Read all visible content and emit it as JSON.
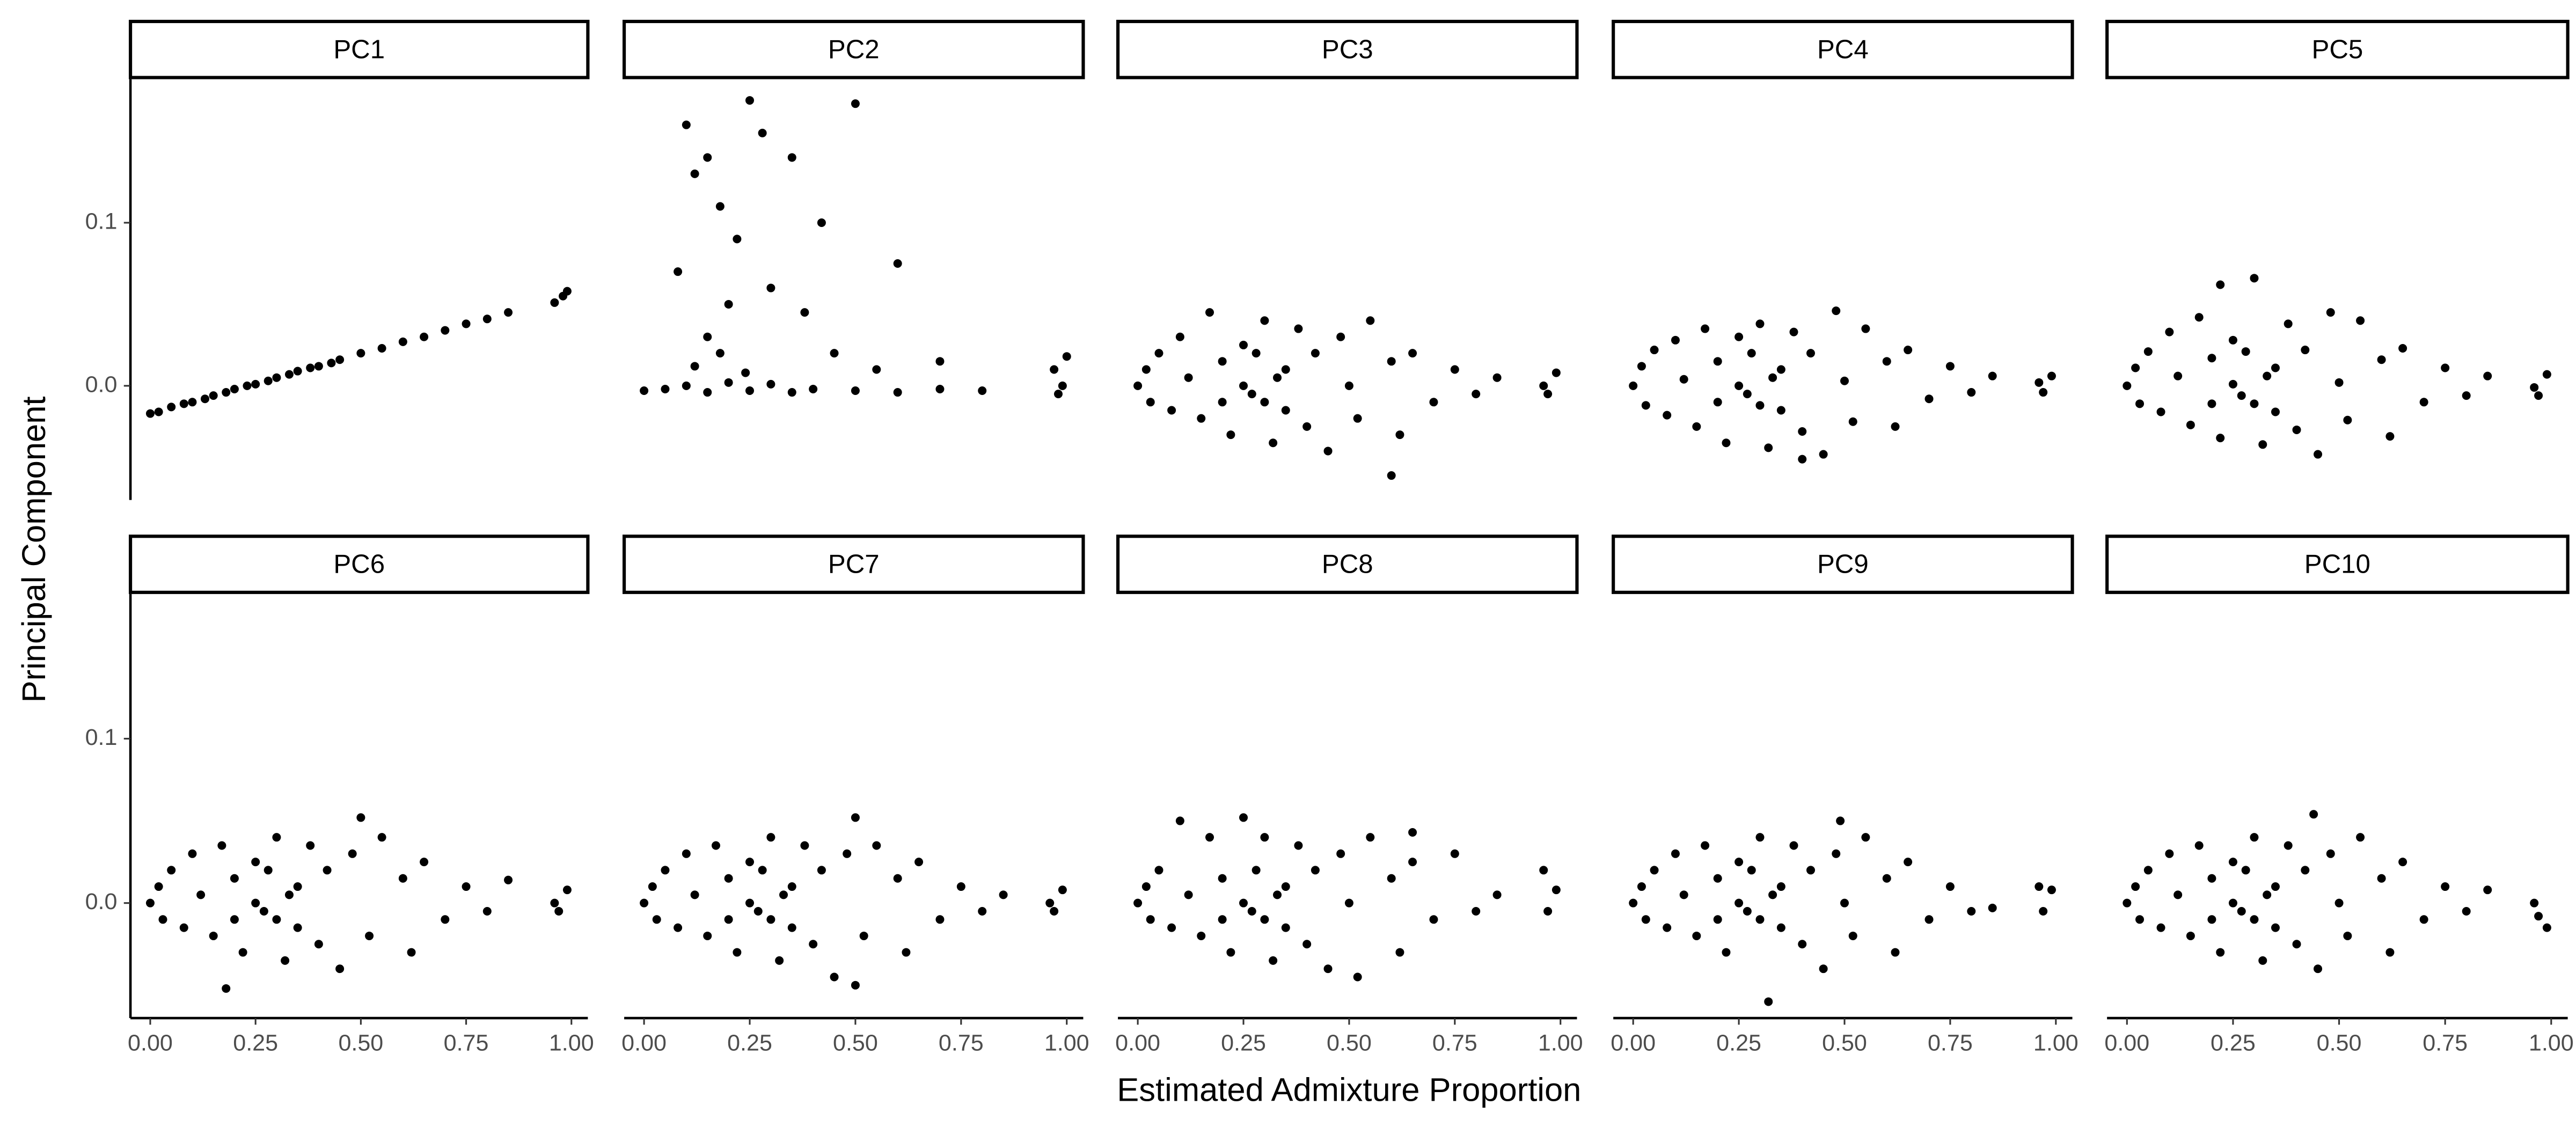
{
  "chart_data": {
    "type": "scatter",
    "xlabel": "Estimated Admixture Proportion",
    "ylabel": "Principal Component",
    "xlim": [
      -0.047,
      1.039
    ],
    "ylim": [
      -0.07,
      0.188
    ],
    "xticks": [
      {
        "value": 0,
        "label": "0.00"
      },
      {
        "value": 0.25,
        "label": "0.25"
      },
      {
        "value": 0.5,
        "label": "0.50"
      },
      {
        "value": 0.75,
        "label": "0.75"
      },
      {
        "value": 1,
        "label": "1.00"
      }
    ],
    "yticks": [
      {
        "value": 0,
        "label": "0.0"
      },
      {
        "value": 0.1,
        "label": "0.1"
      }
    ],
    "color": "#000000",
    "facets": [
      {
        "title": "PC1",
        "x": [
          0,
          0.02,
          0.05,
          0.08,
          0.1,
          0.13,
          0.15,
          0.18,
          0.2,
          0.23,
          0.25,
          0.28,
          0.3,
          0.33,
          0.35,
          0.38,
          0.4,
          0.43,
          0.45,
          0.5,
          0.55,
          0.6,
          0.65,
          0.7,
          0.75,
          0.8,
          0.85,
          0.96,
          0.98,
          0.99
        ],
        "y": [
          -0.017,
          -0.016,
          -0.013,
          -0.011,
          -0.01,
          -0.008,
          -0.006,
          -0.004,
          -0.002,
          0,
          0.001,
          0.003,
          0.005,
          0.007,
          0.009,
          0.011,
          0.012,
          0.014,
          0.016,
          0.02,
          0.023,
          0.027,
          0.03,
          0.034,
          0.038,
          0.041,
          0.045,
          0.051,
          0.055,
          0.058
        ]
      },
      {
        "title": "PC2",
        "x": [
          0.1,
          0.25,
          0.5,
          0.12,
          0.15,
          0.28,
          0.35,
          0.18,
          0.22,
          0.42,
          0.6,
          0.3,
          0.08,
          0.2,
          0.38,
          0.15,
          0.45,
          0.55,
          0.7,
          0,
          0.05,
          0.1,
          0.15,
          0.2,
          0.25,
          0.3,
          0.35,
          0.4,
          0.5,
          0.6,
          0.7,
          0.8,
          0.97,
          0.98,
          1,
          0.99,
          0.12,
          0.18,
          0.24
        ],
        "y": [
          0.16,
          0.175,
          0.173,
          0.13,
          0.14,
          0.155,
          0.14,
          0.11,
          0.09,
          0.1,
          0.075,
          0.06,
          0.07,
          0.05,
          0.045,
          0.03,
          0.02,
          0.01,
          0.015,
          -0.003,
          -0.002,
          0,
          -0.004,
          0.002,
          -0.003,
          0.001,
          -0.004,
          -0.002,
          -0.003,
          -0.004,
          -0.002,
          -0.003,
          0.01,
          -0.005,
          0.018,
          0,
          0.012,
          0.02,
          0.008
        ]
      },
      {
        "title": "PC3",
        "x": [
          0,
          0.02,
          0.03,
          0.05,
          0.08,
          0.1,
          0.12,
          0.15,
          0.17,
          0.2,
          0.22,
          0.25,
          0.27,
          0.3,
          0.32,
          0.35,
          0.38,
          0.4,
          0.42,
          0.45,
          0.48,
          0.5,
          0.52,
          0.55,
          0.6,
          0.62,
          0.65,
          0.7,
          0.75,
          0.8,
          0.85,
          0.96,
          0.97,
          0.99,
          0.25,
          0.3,
          0.35,
          0.28,
          0.33,
          0.2,
          0.6
        ],
        "y": [
          0,
          0.01,
          -0.01,
          0.02,
          -0.015,
          0.03,
          0.005,
          -0.02,
          0.045,
          0.015,
          -0.03,
          0.025,
          -0.005,
          0.04,
          -0.035,
          0.01,
          0.035,
          -0.025,
          0.02,
          -0.04,
          0.03,
          0,
          -0.02,
          0.04,
          0.015,
          -0.03,
          0.02,
          -0.01,
          0.01,
          -0.005,
          0.005,
          0,
          -0.005,
          0.008,
          0,
          -0.01,
          -0.015,
          0.02,
          0.005,
          -0.01,
          -0.055
        ]
      },
      {
        "title": "PC4",
        "x": [
          0,
          0.02,
          0.03,
          0.05,
          0.08,
          0.1,
          0.12,
          0.15,
          0.17,
          0.2,
          0.22,
          0.25,
          0.27,
          0.3,
          0.32,
          0.35,
          0.38,
          0.4,
          0.42,
          0.45,
          0.48,
          0.5,
          0.52,
          0.55,
          0.6,
          0.62,
          0.65,
          0.7,
          0.75,
          0.8,
          0.85,
          0.96,
          0.97,
          0.99,
          0.25,
          0.3,
          0.35,
          0.28,
          0.33,
          0.2,
          0.4
        ],
        "y": [
          0,
          0.012,
          -0.012,
          0.022,
          -0.018,
          0.028,
          0.004,
          -0.025,
          0.035,
          0.015,
          -0.035,
          0.03,
          -0.005,
          0.038,
          -0.038,
          0.01,
          0.033,
          -0.028,
          0.02,
          -0.042,
          0.046,
          0.003,
          -0.022,
          0.035,
          0.015,
          -0.025,
          0.022,
          -0.008,
          0.012,
          -0.004,
          0.006,
          0.002,
          -0.004,
          0.006,
          0,
          -0.012,
          -0.015,
          0.02,
          0.005,
          -0.01,
          -0.045
        ]
      },
      {
        "title": "PC5",
        "x": [
          0,
          0.02,
          0.03,
          0.05,
          0.08,
          0.1,
          0.12,
          0.15,
          0.17,
          0.2,
          0.22,
          0.25,
          0.27,
          0.3,
          0.32,
          0.35,
          0.38,
          0.4,
          0.42,
          0.45,
          0.48,
          0.5,
          0.52,
          0.55,
          0.6,
          0.62,
          0.65,
          0.7,
          0.75,
          0.8,
          0.85,
          0.96,
          0.97,
          0.99,
          0.25,
          0.3,
          0.35,
          0.28,
          0.33,
          0.2,
          0.22
        ],
        "y": [
          0,
          0.011,
          -0.011,
          0.021,
          -0.016,
          0.033,
          0.006,
          -0.024,
          0.042,
          0.017,
          -0.032,
          0.028,
          -0.006,
          0.066,
          -0.036,
          0.011,
          0.038,
          -0.027,
          0.022,
          -0.042,
          0.045,
          0.002,
          -0.021,
          0.04,
          0.016,
          -0.031,
          0.023,
          -0.01,
          0.011,
          -0.006,
          0.006,
          -0.001,
          -0.006,
          0.007,
          0.001,
          -0.011,
          -0.016,
          0.021,
          0.006,
          -0.011,
          0.062
        ]
      },
      {
        "title": "PC6",
        "x": [
          0,
          0.02,
          0.03,
          0.05,
          0.08,
          0.1,
          0.12,
          0.15,
          0.17,
          0.2,
          0.22,
          0.25,
          0.27,
          0.3,
          0.32,
          0.35,
          0.38,
          0.4,
          0.42,
          0.45,
          0.48,
          0.5,
          0.52,
          0.55,
          0.6,
          0.62,
          0.65,
          0.7,
          0.75,
          0.8,
          0.85,
          0.96,
          0.97,
          0.99,
          0.25,
          0.3,
          0.35,
          0.28,
          0.33,
          0.2,
          0.18
        ],
        "y": [
          0,
          0.01,
          -0.01,
          0.02,
          -0.015,
          0.03,
          0.005,
          -0.02,
          0.035,
          0.015,
          -0.03,
          0.025,
          -0.005,
          0.04,
          -0.035,
          0.01,
          0.035,
          -0.025,
          0.02,
          -0.04,
          0.03,
          0.052,
          -0.02,
          0.04,
          0.015,
          -0.03,
          0.025,
          -0.01,
          0.01,
          -0.005,
          0.014,
          0,
          -0.005,
          0.008,
          0,
          -0.01,
          -0.015,
          0.02,
          0.005,
          -0.01,
          -0.052
        ]
      },
      {
        "title": "PC7",
        "x": [
          0,
          0.02,
          0.03,
          0.05,
          0.08,
          0.1,
          0.12,
          0.15,
          0.17,
          0.2,
          0.22,
          0.25,
          0.27,
          0.3,
          0.32,
          0.35,
          0.38,
          0.4,
          0.42,
          0.45,
          0.48,
          0.5,
          0.52,
          0.55,
          0.6,
          0.62,
          0.65,
          0.7,
          0.75,
          0.8,
          0.85,
          0.96,
          0.97,
          0.99,
          0.25,
          0.3,
          0.35,
          0.28,
          0.33,
          0.2,
          0.5
        ],
        "y": [
          0,
          0.01,
          -0.01,
          0.02,
          -0.015,
          0.03,
          0.005,
          -0.02,
          0.035,
          0.015,
          -0.03,
          0.025,
          -0.005,
          0.04,
          -0.035,
          0.01,
          0.035,
          -0.025,
          0.02,
          -0.045,
          0.03,
          0.052,
          -0.02,
          0.035,
          0.015,
          -0.03,
          0.025,
          -0.01,
          0.01,
          -0.005,
          0.005,
          0,
          -0.005,
          0.008,
          0,
          -0.01,
          -0.015,
          0.02,
          0.005,
          -0.01,
          -0.05
        ]
      },
      {
        "title": "PC8",
        "x": [
          0,
          0.02,
          0.03,
          0.05,
          0.08,
          0.1,
          0.12,
          0.15,
          0.17,
          0.2,
          0.22,
          0.25,
          0.27,
          0.3,
          0.32,
          0.35,
          0.38,
          0.4,
          0.42,
          0.45,
          0.48,
          0.5,
          0.52,
          0.55,
          0.6,
          0.62,
          0.65,
          0.7,
          0.75,
          0.8,
          0.85,
          0.96,
          0.97,
          0.99,
          0.25,
          0.3,
          0.35,
          0.28,
          0.33,
          0.2,
          0.65
        ],
        "y": [
          0,
          0.01,
          -0.01,
          0.02,
          -0.015,
          0.05,
          0.005,
          -0.02,
          0.04,
          0.015,
          -0.03,
          0.052,
          -0.005,
          0.04,
          -0.035,
          0.01,
          0.035,
          -0.025,
          0.02,
          -0.04,
          0.03,
          0,
          -0.045,
          0.04,
          0.015,
          -0.03,
          0.025,
          -0.01,
          0.03,
          -0.005,
          0.005,
          0.02,
          -0.005,
          0.008,
          0,
          -0.01,
          -0.015,
          0.02,
          0.005,
          -0.01,
          0.043
        ]
      },
      {
        "title": "PC9",
        "x": [
          0,
          0.02,
          0.03,
          0.05,
          0.08,
          0.1,
          0.12,
          0.15,
          0.17,
          0.2,
          0.22,
          0.25,
          0.27,
          0.3,
          0.32,
          0.35,
          0.38,
          0.4,
          0.42,
          0.45,
          0.48,
          0.5,
          0.52,
          0.55,
          0.6,
          0.62,
          0.65,
          0.7,
          0.75,
          0.8,
          0.85,
          0.96,
          0.97,
          0.99,
          0.25,
          0.3,
          0.35,
          0.28,
          0.33,
          0.2,
          0.49
        ],
        "y": [
          0,
          0.01,
          -0.01,
          0.02,
          -0.015,
          0.03,
          0.005,
          -0.02,
          0.035,
          0.015,
          -0.03,
          0.025,
          -0.005,
          0.04,
          -0.06,
          0.01,
          0.035,
          -0.025,
          0.02,
          -0.04,
          0.03,
          0,
          -0.02,
          0.04,
          0.015,
          -0.03,
          0.025,
          -0.01,
          0.01,
          -0.005,
          -0.003,
          0.01,
          -0.005,
          0.008,
          0,
          -0.01,
          -0.015,
          0.02,
          0.005,
          -0.01,
          0.05
        ]
      },
      {
        "title": "PC10",
        "x": [
          0,
          0.02,
          0.03,
          0.05,
          0.08,
          0.1,
          0.12,
          0.15,
          0.17,
          0.2,
          0.22,
          0.25,
          0.27,
          0.3,
          0.32,
          0.35,
          0.38,
          0.4,
          0.42,
          0.45,
          0.48,
          0.5,
          0.52,
          0.55,
          0.6,
          0.62,
          0.65,
          0.7,
          0.75,
          0.8,
          0.85,
          0.96,
          0.97,
          0.99,
          0.25,
          0.3,
          0.35,
          0.28,
          0.33,
          0.2,
          0.44
        ],
        "y": [
          0,
          0.01,
          -0.01,
          0.02,
          -0.015,
          0.03,
          0.005,
          -0.02,
          0.035,
          0.015,
          -0.03,
          0.025,
          -0.005,
          0.04,
          -0.035,
          0.01,
          0.035,
          -0.025,
          0.02,
          -0.04,
          0.03,
          0,
          -0.02,
          0.04,
          0.015,
          -0.03,
          0.025,
          -0.01,
          0.01,
          -0.005,
          0.008,
          0,
          -0.008,
          -0.015,
          0,
          -0.01,
          -0.015,
          0.02,
          0.005,
          -0.01,
          0.054
        ]
      }
    ]
  }
}
